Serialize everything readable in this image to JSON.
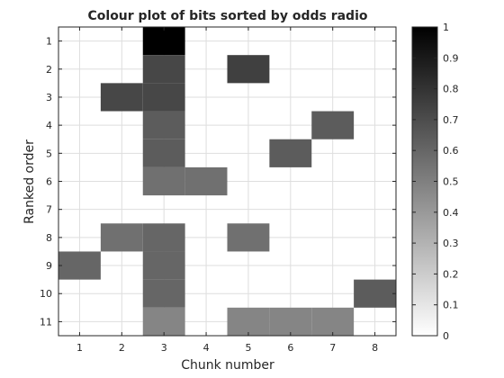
{
  "chart_data": {
    "type": "heatmap",
    "title": "Colour plot of bits sorted by odds radio",
    "xlabel": "Chunk number",
    "ylabel": "Ranked order",
    "x_categories": [
      1,
      2,
      3,
      4,
      5,
      6,
      7,
      8
    ],
    "y_categories": [
      1,
      2,
      3,
      4,
      5,
      6,
      7,
      8,
      9,
      10,
      11
    ],
    "colormap": "gray-reversed",
    "color_range": [
      0,
      1
    ],
    "colorbar_ticks": [
      0,
      0.1,
      0.2,
      0.3,
      0.4,
      0.5,
      0.6,
      0.7,
      0.8,
      0.9,
      1
    ],
    "grid": true,
    "y_direction": "top-to-bottom",
    "matrix": [
      [
        0,
        0,
        1.0,
        0,
        0,
        0,
        0,
        0
      ],
      [
        0,
        0,
        0.72,
        0,
        0.75,
        0,
        0,
        0
      ],
      [
        0,
        0.72,
        0.72,
        0,
        0,
        0,
        0,
        0
      ],
      [
        0,
        0,
        0.64,
        0,
        0,
        0,
        0.64,
        0
      ],
      [
        0,
        0,
        0.64,
        0,
        0,
        0.64,
        0,
        0
      ],
      [
        0,
        0,
        0.56,
        0.56,
        0,
        0,
        0,
        0
      ],
      [
        0,
        0,
        0,
        0,
        0,
        0,
        0,
        0
      ],
      [
        0,
        0.56,
        0.6,
        0,
        0.56,
        0,
        0,
        0
      ],
      [
        0.6,
        0,
        0.6,
        0,
        0,
        0,
        0,
        0
      ],
      [
        0,
        0,
        0.6,
        0,
        0,
        0,
        0,
        0.64
      ],
      [
        0,
        0,
        0.48,
        0,
        0.48,
        0.48,
        0.48,
        0
      ]
    ],
    "partial_last_row_note": [
      false,
      false,
      false,
      false,
      false,
      true,
      false,
      false
    ]
  }
}
